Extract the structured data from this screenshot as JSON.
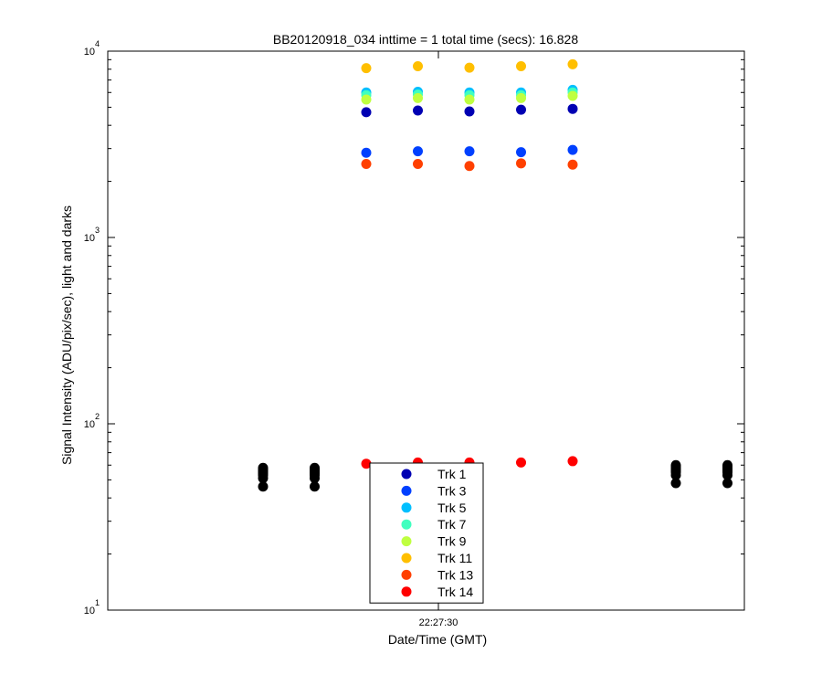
{
  "chart_data": {
    "type": "scatter",
    "title": "BB20120918_034 inttime = 1 total time (secs): 16.828",
    "xlabel": "Date/Time (GMT)",
    "ylabel": "Signal Intensity (ADU/pix/sec), light and darks",
    "yscale": "log",
    "ylim": [
      10,
      10000
    ],
    "x_tick_labels": [
      "22:27:30"
    ],
    "y_tick_labels": [
      {
        "base": "10",
        "exp": "1"
      },
      {
        "base": "10",
        "exp": "2"
      },
      {
        "base": "10",
        "exp": "3"
      },
      {
        "base": "10",
        "exp": "4"
      }
    ],
    "grid": false,
    "legend_position": "bottom-center",
    "light_frames": 5,
    "dark_frames": [
      1,
      2,
      9,
      10
    ],
    "series": [
      {
        "name": "Trk 1",
        "color": "#0000b3",
        "values": [
          4700,
          4800,
          4750,
          4850,
          4900
        ]
      },
      {
        "name": "Trk 3",
        "color": "#0040ff",
        "values": [
          2850,
          2900,
          2900,
          2870,
          2950
        ]
      },
      {
        "name": "Trk 5",
        "color": "#00bfff",
        "values": [
          6000,
          6050,
          6000,
          6000,
          6200
        ]
      },
      {
        "name": "Trk 7",
        "color": "#40ffbf",
        "values": [
          5800,
          5850,
          5800,
          5800,
          6000
        ]
      },
      {
        "name": "Trk 9",
        "color": "#bfff40",
        "values": [
          5500,
          5600,
          5500,
          5600,
          5750
        ]
      },
      {
        "name": "Trk 11",
        "color": "#ffbf00",
        "values": [
          8100,
          8300,
          8150,
          8300,
          8500
        ]
      },
      {
        "name": "Trk 13",
        "color": "#ff4000",
        "values": [
          2480,
          2480,
          2420,
          2500,
          2460
        ]
      },
      {
        "name": "Trk 14",
        "color": "#ff0000",
        "values": [
          61,
          62,
          62,
          62,
          63
        ]
      }
    ],
    "darks": {
      "color": "#000000",
      "values": [
        [
          46,
          51,
          53,
          54,
          55,
          56,
          57,
          58
        ],
        [
          46,
          51,
          53,
          54,
          55,
          56,
          57,
          58
        ],
        [
          48,
          53,
          55,
          56,
          57,
          58,
          59,
          60
        ],
        [
          48,
          53,
          55,
          56,
          57,
          58,
          59,
          60
        ]
      ]
    }
  }
}
